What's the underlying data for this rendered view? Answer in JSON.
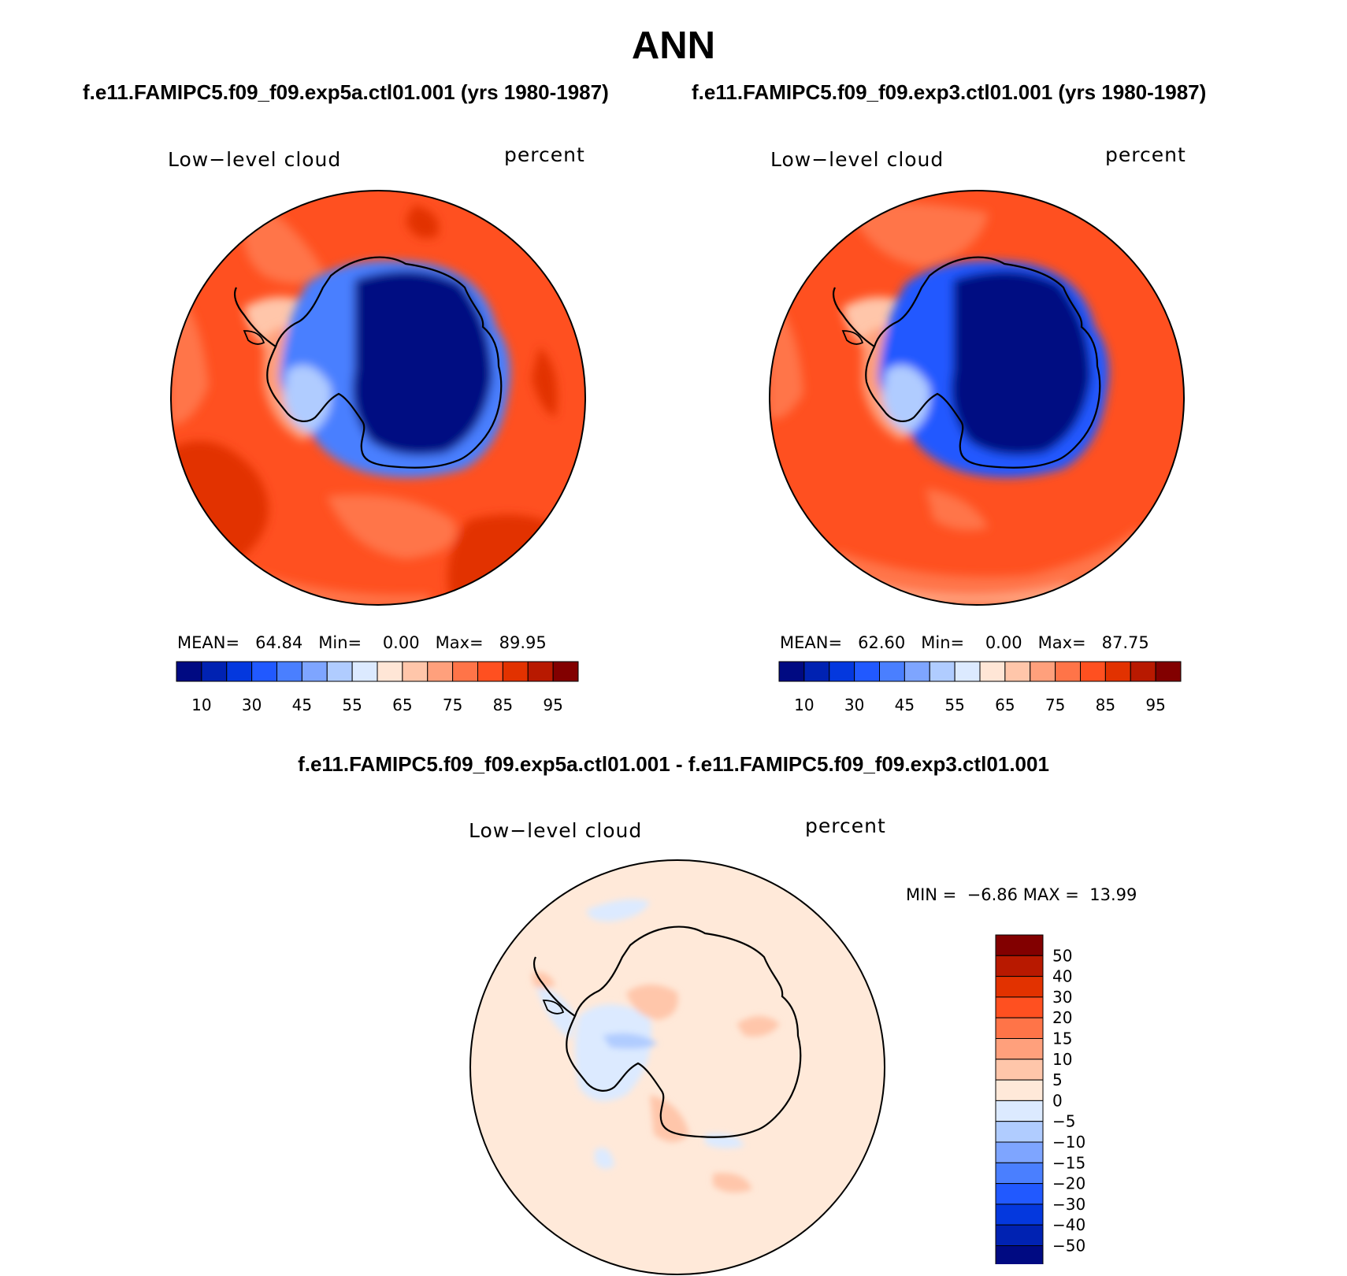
{
  "title": "ANN",
  "panels": [
    {
      "case": "f.e11.FAMIPC5.f09_f09.exp5a.ctl01.001 (yrs 1980-1987)",
      "variable": "Low−level cloud",
      "units": "percent",
      "stats": {
        "mean_label": "MEAN=",
        "mean": "64.84",
        "min_label": "Min=",
        "min": "0.00",
        "max_label": "Max=",
        "max": "89.95"
      }
    },
    {
      "case": "f.e11.FAMIPC5.f09_f09.exp3.ctl01.001 (yrs 1980-1987)",
      "variable": "Low−level cloud",
      "units": "percent",
      "stats": {
        "mean_label": "MEAN=",
        "mean": "62.60",
        "min_label": "Min=",
        "min": "0.00",
        "max_label": "Max=",
        "max": "87.75"
      }
    }
  ],
  "diff": {
    "case": "f.e11.FAMIPC5.f09_f09.exp5a.ctl01.001 - f.e11.FAMIPC5.f09_f09.exp3.ctl01.001",
    "variable": "Low−level cloud",
    "units": "percent",
    "stats": {
      "min_label": "MIN =",
      "min": "−6.86",
      "max_label": "MAX =",
      "max": "13.99"
    }
  },
  "colorbar_top": {
    "labels": [
      "10",
      "30",
      "45",
      "55",
      "65",
      "75",
      "85",
      "95"
    ],
    "colors": [
      "#000a82",
      "#0022b2",
      "#0438de",
      "#2159ff",
      "#4a7fff",
      "#7ea5ff",
      "#b0ccff",
      "#dceaff",
      "#ffe6d6",
      "#ffc6aa",
      "#ffa07c",
      "#ff7448",
      "#ff5020",
      "#e23200",
      "#b81900",
      "#820000"
    ]
  },
  "colorbar_diff": {
    "labels": [
      "50",
      "40",
      "30",
      "20",
      "15",
      "10",
      "5",
      "0",
      "−5",
      "−10",
      "−15",
      "−20",
      "−30",
      "−40",
      "−50"
    ],
    "colors": [
      "#820000",
      "#b81900",
      "#e23200",
      "#ff5020",
      "#ff7448",
      "#ffa07c",
      "#ffc6aa",
      "#ffe9d9",
      "#dceaff",
      "#b0ccff",
      "#7ea5ff",
      "#4a7fff",
      "#2159ff",
      "#0438de",
      "#0022b2",
      "#000a82"
    ]
  }
}
